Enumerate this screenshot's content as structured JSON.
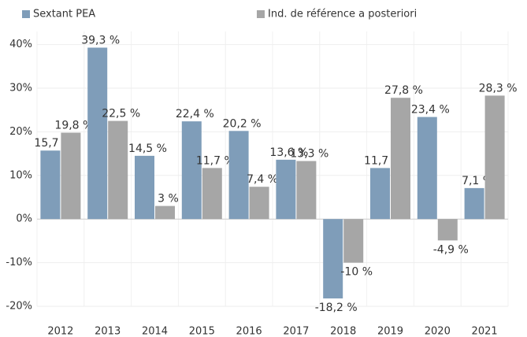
{
  "chart_data": {
    "type": "bar",
    "categories": [
      "2012",
      "2013",
      "2014",
      "2015",
      "2016",
      "2017",
      "2018",
      "2019",
      "2020",
      "2021"
    ],
    "series": [
      {
        "name": "Sextant PEA",
        "color": "#7f9db9",
        "values": [
          15.7,
          39.3,
          14.5,
          22.4,
          20.2,
          13.6,
          -18.2,
          11.7,
          23.4,
          7.1
        ],
        "value_labels": [
          "15,7 %",
          "39,3 %",
          "14,5 %",
          "22,4 %",
          "20,2 %",
          "13,6 %",
          "-18,2 %",
          "11,7 %",
          "23,4 %",
          "7,1 %"
        ]
      },
      {
        "name": "Ind. de référence a posteriori",
        "color": "#a6a6a6",
        "values": [
          19.8,
          22.5,
          3,
          11.7,
          7.4,
          13.3,
          -10,
          27.8,
          -4.9,
          28.3
        ],
        "value_labels": [
          "19,8 %",
          "22,5 %",
          "3 %",
          "11,7 %",
          "7,4 %",
          "13,3 %",
          "-10 %",
          "27,8 %",
          "-4,9 %",
          "28,3 %"
        ]
      }
    ],
    "ylim": [
      -20,
      43
    ],
    "yticks": [
      {
        "value": -20,
        "label": "-20%"
      },
      {
        "value": -10,
        "label": "-10%"
      },
      {
        "value": 0,
        "label": "0%"
      },
      {
        "value": 10,
        "label": "10%"
      },
      {
        "value": 20,
        "label": "20%"
      },
      {
        "value": 30,
        "label": "30%"
      },
      {
        "value": 40,
        "label": "40%"
      }
    ],
    "grid": true,
    "legend": "top"
  }
}
